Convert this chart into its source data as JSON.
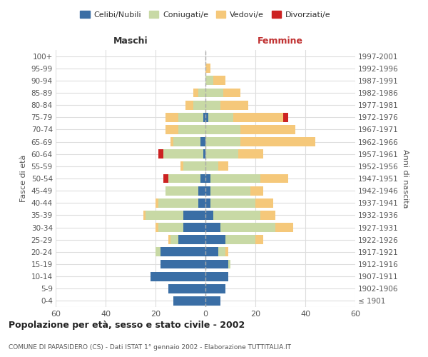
{
  "age_groups": [
    "100+",
    "95-99",
    "90-94",
    "85-89",
    "80-84",
    "75-79",
    "70-74",
    "65-69",
    "60-64",
    "55-59",
    "50-54",
    "45-49",
    "40-44",
    "35-39",
    "30-34",
    "25-29",
    "20-24",
    "15-19",
    "10-14",
    "5-9",
    "0-4"
  ],
  "birth_years": [
    "≤ 1901",
    "1902-1906",
    "1907-1911",
    "1912-1916",
    "1917-1921",
    "1922-1926",
    "1927-1931",
    "1932-1936",
    "1937-1941",
    "1942-1946",
    "1947-1951",
    "1952-1956",
    "1957-1961",
    "1962-1966",
    "1967-1971",
    "1972-1976",
    "1977-1981",
    "1982-1986",
    "1987-1991",
    "1992-1996",
    "1997-2001"
  ],
  "maschi": {
    "celibi": [
      0,
      0,
      0,
      0,
      0,
      1,
      0,
      2,
      1,
      0,
      2,
      3,
      3,
      9,
      9,
      11,
      18,
      18,
      22,
      15,
      13
    ],
    "coniugati": [
      0,
      0,
      0,
      3,
      5,
      10,
      11,
      11,
      16,
      9,
      13,
      13,
      16,
      15,
      10,
      3,
      2,
      0,
      0,
      0,
      0
    ],
    "vedovi": [
      0,
      0,
      0,
      2,
      3,
      5,
      5,
      1,
      0,
      1,
      0,
      0,
      1,
      1,
      1,
      1,
      0,
      0,
      0,
      0,
      0
    ],
    "divorziati": [
      0,
      0,
      0,
      0,
      0,
      0,
      0,
      0,
      2,
      0,
      2,
      0,
      0,
      0,
      0,
      0,
      0,
      0,
      0,
      0,
      0
    ]
  },
  "femmine": {
    "nubili": [
      0,
      0,
      0,
      0,
      0,
      1,
      0,
      0,
      0,
      0,
      2,
      2,
      2,
      3,
      6,
      8,
      5,
      9,
      9,
      8,
      6
    ],
    "coniugate": [
      0,
      0,
      3,
      7,
      6,
      10,
      14,
      14,
      13,
      5,
      20,
      16,
      18,
      19,
      22,
      12,
      3,
      1,
      0,
      0,
      0
    ],
    "vedove": [
      0,
      2,
      5,
      7,
      11,
      20,
      22,
      30,
      10,
      4,
      11,
      5,
      7,
      6,
      7,
      3,
      1,
      0,
      0,
      0,
      0
    ],
    "divorziate": [
      0,
      0,
      0,
      0,
      0,
      2,
      0,
      0,
      0,
      0,
      0,
      0,
      0,
      0,
      0,
      0,
      0,
      0,
      0,
      0,
      0
    ]
  },
  "colors": {
    "celibi": "#3a6ea5",
    "coniugati": "#c8d9a5",
    "vedovi": "#f5c87a",
    "divorziati": "#cc2222"
  },
  "xlim": 60,
  "title": "Popolazione per età, sesso e stato civile - 2002",
  "subtitle": "COMUNE DI PAPASIDERO (CS) - Dati ISTAT 1° gennaio 2002 - Elaborazione TUTTITALIA.IT",
  "ylabel": "Fasce di età",
  "right_label": "Anni di nascita",
  "legend_labels": [
    "Celibi/Nubili",
    "Coniugati/e",
    "Vedovi/e",
    "Divorziati/e"
  ],
  "maschi_label": "Maschi",
  "femmine_label": "Femmine"
}
